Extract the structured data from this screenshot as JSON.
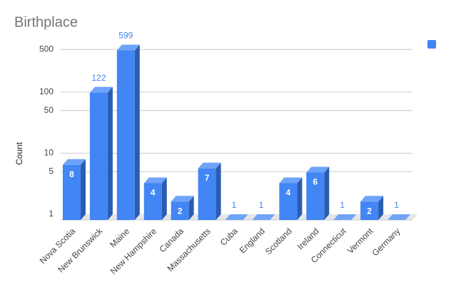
{
  "chart_data": {
    "type": "bar",
    "title": "Birthplace",
    "y_label": "Count",
    "categories": [
      "Nova Scotia",
      "New Brunswick",
      "Maine",
      "New Hampshire",
      "Canada",
      "Massachusetts",
      "Cuba",
      "England",
      "Scotland",
      "Ireland",
      "Connecticut",
      "Vermont",
      "Germany"
    ],
    "values": [
      8,
      122,
      599,
      4,
      2,
      7,
      1,
      1,
      4,
      6,
      1,
      2,
      1
    ],
    "color": "#4285f4",
    "y_scale": "log",
    "ylim": [
      1,
      1000
    ],
    "yticks": [
      1,
      5,
      10,
      50,
      100,
      500
    ],
    "grid": true,
    "legend": "top-right"
  }
}
